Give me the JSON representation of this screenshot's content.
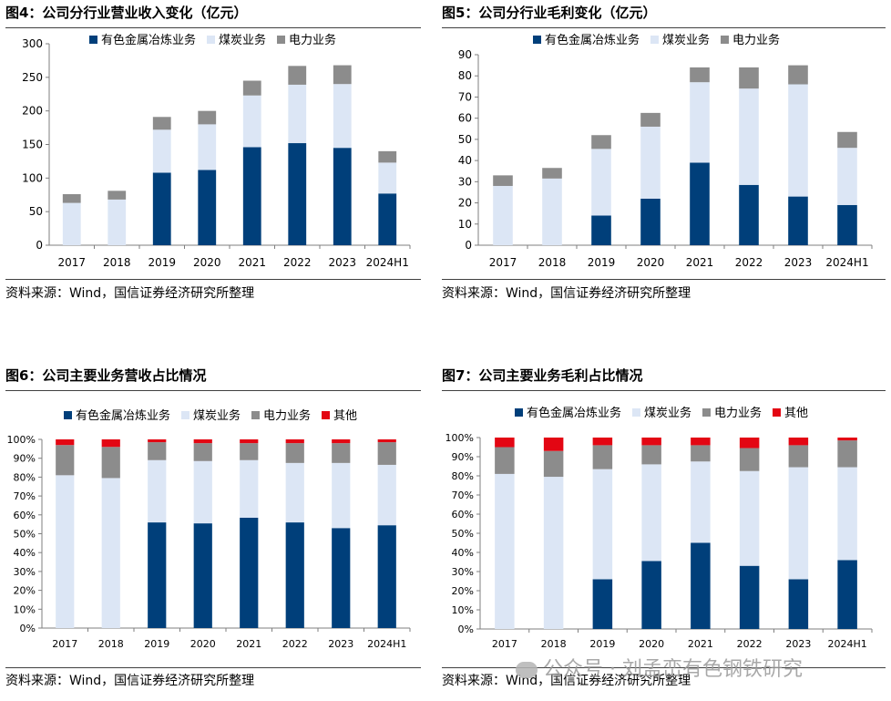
{
  "watermark": "公众号 · 刘孟峦有色钢铁研究",
  "colors": {
    "nonferrous": "#003F7A",
    "coal": "#DCE6F5",
    "power": "#8C8C8C",
    "other": "#E30613"
  },
  "chart_data": [
    {
      "id": "fig4",
      "type": "bar",
      "stacked": true,
      "title": "图4：公司分行业营业收入变化（亿元）",
      "source": "资料来源：Wind，国信证券经济研究所整理",
      "categories": [
        "2017",
        "2018",
        "2019",
        "2020",
        "2021",
        "2022",
        "2023",
        "2024H1"
      ],
      "series": [
        {
          "name": "有色金属冶炼业务",
          "color": "#003F7A",
          "values": [
            0,
            0,
            108,
            112,
            146,
            152,
            145,
            77
          ]
        },
        {
          "name": "煤炭业务",
          "color": "#DCE6F5",
          "values": [
            63,
            68,
            64,
            68,
            77,
            87,
            95,
            46
          ]
        },
        {
          "name": "电力业务",
          "color": "#8C8C8C",
          "values": [
            13,
            13,
            19,
            20,
            22,
            28,
            28,
            17
          ]
        }
      ],
      "ylim": [
        0,
        300
      ],
      "yticks": [
        0,
        50,
        100,
        150,
        200,
        250,
        300
      ],
      "ytick_labels": [
        "0",
        "50",
        "100",
        "150",
        "200",
        "250",
        "300"
      ],
      "legend": "top"
    },
    {
      "id": "fig5",
      "type": "bar",
      "stacked": true,
      "title": "图5：公司分行业毛利变化（亿元）",
      "source": "资料来源：Wind，国信证券经济研究所整理",
      "categories": [
        "2017",
        "2018",
        "2019",
        "2020",
        "2021",
        "2022",
        "2023",
        "2024H1"
      ],
      "series": [
        {
          "name": "有色金属冶炼业务",
          "color": "#003F7A",
          "values": [
            0,
            0,
            14,
            22,
            39,
            28.5,
            23,
            19
          ]
        },
        {
          "name": "煤炭业务",
          "color": "#DCE6F5",
          "values": [
            28,
            31.5,
            31.5,
            34,
            38,
            45.5,
            53,
            27
          ]
        },
        {
          "name": "电力业务",
          "color": "#8C8C8C",
          "values": [
            5,
            5,
            6.5,
            6.5,
            7,
            10,
            9,
            7.5
          ]
        }
      ],
      "ylim": [
        0,
        90
      ],
      "yticks": [
        0,
        10,
        20,
        30,
        40,
        50,
        60,
        70,
        80,
        90
      ],
      "ytick_labels": [
        "0",
        "10",
        "20",
        "30",
        "40",
        "50",
        "60",
        "70",
        "80",
        "90"
      ],
      "legend": "top"
    },
    {
      "id": "fig6",
      "type": "bar",
      "stacked": true,
      "title": "图6：公司主要业务营收占比情况",
      "source": "资料来源：Wind，国信证券经济研究所整理",
      "categories": [
        "2017",
        "2018",
        "2019",
        "2020",
        "2021",
        "2022",
        "2023",
        "2024H1"
      ],
      "series": [
        {
          "name": "有色金属冶炼业务",
          "color": "#003F7A",
          "values": [
            0,
            0,
            56,
            55.5,
            58.5,
            56,
            53,
            54.5
          ]
        },
        {
          "name": "煤炭业务",
          "color": "#DCE6F5",
          "values": [
            81,
            79.5,
            33,
            33,
            30.5,
            31.5,
            34.5,
            32
          ]
        },
        {
          "name": "电力业务",
          "color": "#8C8C8C",
          "values": [
            16,
            16.5,
            9.5,
            9.5,
            9,
            10.5,
            10.5,
            12
          ]
        },
        {
          "name": "其他",
          "color": "#E30613",
          "values": [
            3,
            4,
            1.5,
            2,
            2,
            2,
            2,
            1.5
          ]
        }
      ],
      "ylim": [
        0,
        100
      ],
      "yticks": [
        0,
        10,
        20,
        30,
        40,
        50,
        60,
        70,
        80,
        90,
        100
      ],
      "ytick_labels": [
        "0%",
        "10%",
        "20%",
        "30%",
        "40%",
        "50%",
        "60%",
        "70%",
        "80%",
        "90%",
        "100%"
      ],
      "legend": "top"
    },
    {
      "id": "fig7",
      "type": "bar",
      "stacked": true,
      "title": "图7：公司主要业务毛利占比情况",
      "source": "资料来源：Wind，国信证券经济研究所整理",
      "categories": [
        "2017",
        "2018",
        "2019",
        "2020",
        "2021",
        "2022",
        "2023",
        "2024H1"
      ],
      "series": [
        {
          "name": "有色金属冶炼业务",
          "color": "#003F7A",
          "values": [
            0,
            0,
            26,
            35.5,
            45,
            33,
            26,
            36
          ]
        },
        {
          "name": "煤炭业务",
          "color": "#DCE6F5",
          "values": [
            81,
            79.5,
            57.5,
            50.5,
            42.5,
            49.5,
            58.5,
            48.5
          ]
        },
        {
          "name": "电力业务",
          "color": "#8C8C8C",
          "values": [
            14,
            13.5,
            12.5,
            10,
            8.5,
            12,
            11.5,
            14
          ]
        },
        {
          "name": "其他",
          "color": "#E30613",
          "values": [
            5,
            7,
            4,
            4,
            4,
            5.5,
            4,
            1.5
          ]
        }
      ],
      "ylim": [
        0,
        100
      ],
      "yticks": [
        0,
        10,
        20,
        30,
        40,
        50,
        60,
        70,
        80,
        90,
        100
      ],
      "ytick_labels": [
        "0%",
        "10%",
        "20%",
        "30%",
        "40%",
        "50%",
        "60%",
        "70%",
        "80%",
        "90%",
        "100%"
      ],
      "legend": "top"
    }
  ]
}
